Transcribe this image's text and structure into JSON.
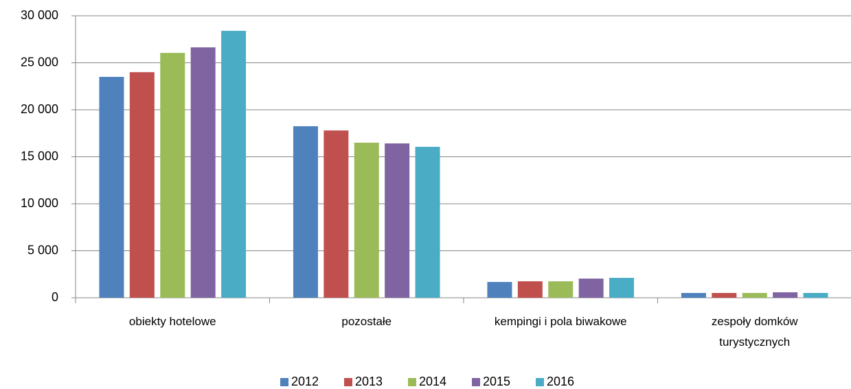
{
  "chart_data": {
    "type": "bar",
    "categories": [
      "obiekty hotelowe",
      "pozostałe",
      "kempingi i pola biwakowe",
      "zespoły domków turystycznych"
    ],
    "series": [
      {
        "name": "2012",
        "color": "#4f81bd",
        "values": [
          23500,
          18250,
          1680,
          510
        ]
      },
      {
        "name": "2013",
        "color": "#c0504d",
        "values": [
          24000,
          17800,
          1750,
          510
        ]
      },
      {
        "name": "2014",
        "color": "#9bbb59",
        "values": [
          26050,
          16500,
          1750,
          510
        ]
      },
      {
        "name": "2015",
        "color": "#8064a2",
        "values": [
          26640,
          16420,
          2040,
          580
        ]
      },
      {
        "name": "2016",
        "color": "#4bacc6",
        "values": [
          28400,
          16060,
          2120,
          510
        ]
      }
    ],
    "ylim": [
      0,
      30000
    ],
    "yticks": [
      {
        "value": 0,
        "label": "0"
      },
      {
        "value": 5000,
        "label": "5 000"
      },
      {
        "value": 10000,
        "label": "10 000"
      },
      {
        "value": 15000,
        "label": "15 000"
      },
      {
        "value": 20000,
        "label": "20 000"
      },
      {
        "value": 25000,
        "label": "25 000"
      },
      {
        "value": 30000,
        "label": "30 000"
      }
    ],
    "grid": true,
    "legend": "bottom"
  }
}
